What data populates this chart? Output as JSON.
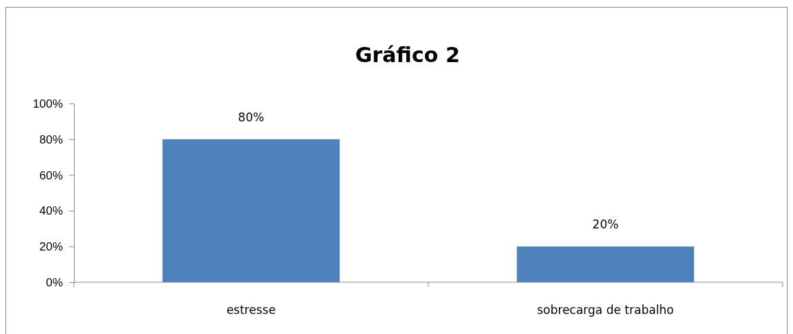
{
  "chart_data": {
    "type": "bar",
    "title": "Gráfico 2",
    "categories": [
      "estresse",
      "sobrecarga de trabalho"
    ],
    "values": [
      80,
      20
    ],
    "value_labels": [
      "80%",
      "20%"
    ],
    "color": "#4f81bd",
    "ylim": [
      0,
      100
    ],
    "yticks": [
      {
        "value": 0,
        "label": "0%"
      },
      {
        "value": 20,
        "label": "20%"
      },
      {
        "value": 40,
        "label": "40%"
      },
      {
        "value": 60,
        "label": "60%"
      },
      {
        "value": 80,
        "label": "80%"
      },
      {
        "value": 100,
        "label": "100%"
      }
    ],
    "grid": false
  }
}
